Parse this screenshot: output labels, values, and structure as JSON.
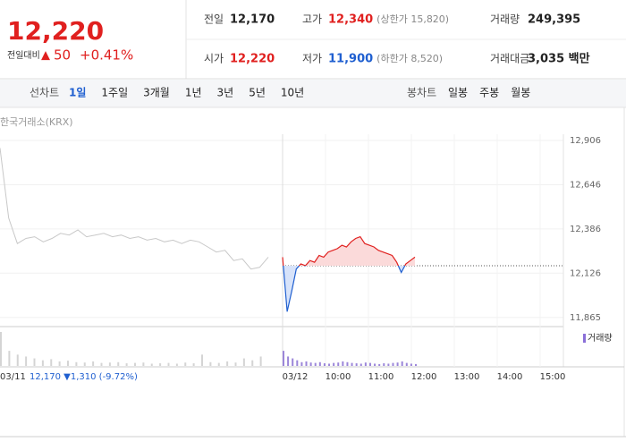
{
  "header": {
    "price": "12,220",
    "change_label": "전일대비",
    "change_arrow": "▲",
    "change": "50",
    "change_pct": "+0.41%",
    "color": "#e0201f"
  },
  "stats": [
    {
      "label": "전일",
      "value": "12,170",
      "color": "#222222"
    },
    {
      "label": "고가",
      "value": "12,340",
      "note": "(상한가 15,820)",
      "color": "#e0201f"
    },
    {
      "label": "거래량",
      "value": "249,395",
      "color": "#222222"
    },
    {
      "label": "시가",
      "value": "12,220",
      "color": "#e0201f"
    },
    {
      "label": "저가",
      "value": "11,900",
      "note": "(하한가 8,520)",
      "color": "#1f5fd0"
    },
    {
      "label": "거래대금",
      "value": "3,035 백만",
      "color": "#222222"
    }
  ],
  "tabs": {
    "line_label": "선차트",
    "line": [
      "1일",
      "1주일",
      "3개월",
      "1년",
      "3년",
      "5년",
      "10년"
    ],
    "selected": 0,
    "candle_label": "봉차트",
    "candle": [
      "일봉",
      "주봉",
      "월봉"
    ]
  },
  "chart": {
    "source": "한국거래소(KRX)",
    "ylim": [
      11812,
      12943
    ],
    "yticks": [
      {
        "value": 12906,
        "label": "12,906"
      },
      {
        "value": 12646,
        "label": "12,646"
      },
      {
        "value": 12386,
        "label": "12,386"
      },
      {
        "value": 12126,
        "label": "12,126"
      },
      {
        "value": 11865,
        "label": "11,865"
      }
    ],
    "base": 12170,
    "prev_day": {
      "label": "03/11",
      "values": [
        12862,
        12450,
        12300,
        12330,
        12340,
        12310,
        12330,
        12360,
        12350,
        12380,
        12340,
        12350,
        12360,
        12340,
        12350,
        12330,
        12340,
        12320,
        12330,
        12310,
        12320,
        12300,
        12320,
        12310,
        12280,
        12250,
        12260,
        12200,
        12210,
        12150,
        12160,
        12220
      ]
    },
    "today": {
      "values": [
        12220,
        11900,
        12020,
        12150,
        12180,
        12170,
        12200,
        12190,
        12230,
        12220,
        12250,
        12260,
        12270,
        12290,
        12280,
        12310,
        12330,
        12340,
        12300,
        12290,
        12280,
        12260,
        12250,
        12240,
        12230,
        12190,
        12130,
        12180,
        12200,
        12220
      ]
    },
    "xticks": [
      "03/12",
      "10:00",
      "11:00",
      "12:00",
      "13:00",
      "14:00",
      "15:00"
    ],
    "volume_label": "거래량",
    "prev_volume": [
      900,
      400,
      300,
      250,
      200,
      150,
      180,
      120,
      140,
      100,
      90,
      120,
      80,
      90,
      100,
      70,
      80,
      90,
      60,
      70,
      80,
      60,
      90,
      70,
      300,
      100,
      80,
      120,
      90,
      200,
      150,
      250
    ],
    "today_volume": [
      400,
      250,
      200,
      150,
      100,
      120,
      90,
      80,
      100,
      70,
      60,
      80,
      90,
      120,
      100,
      80,
      70,
      60,
      90,
      80,
      60,
      50,
      70,
      60,
      80,
      90,
      120,
      80,
      60,
      50
    ],
    "footer": "12,170 ▼1,310 (-9.72%)"
  }
}
